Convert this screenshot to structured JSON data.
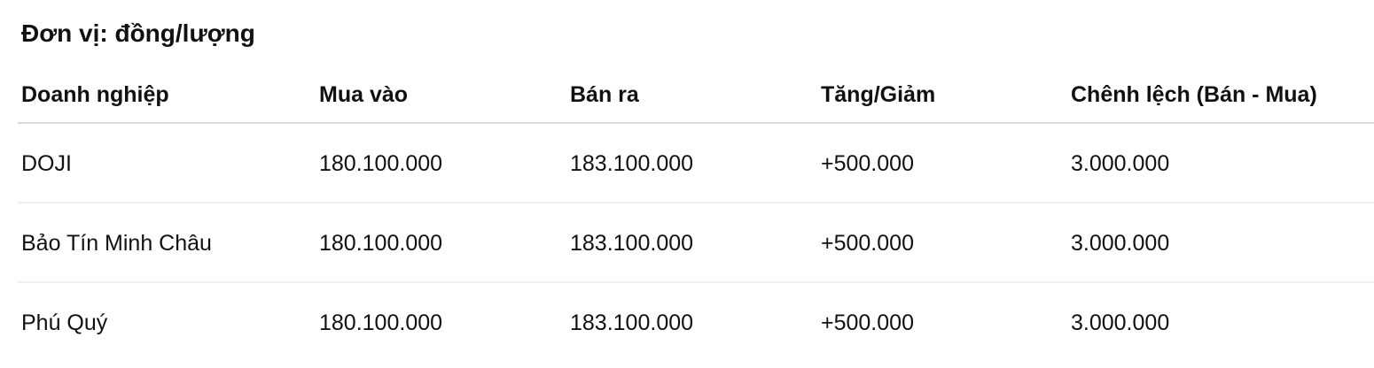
{
  "unit_label": "Đơn vị: đồng/lượng",
  "table": {
    "headers": [
      "Doanh nghiệp",
      "Mua vào",
      "Bán ra",
      "Tăng/Giảm",
      "Chênh lệch (Bán - Mua)"
    ],
    "rows": [
      [
        "DOJI",
        "180.100.000",
        "183.100.000",
        "+500.000",
        "3.000.000"
      ],
      [
        "Bảo Tín Minh Châu",
        "180.100.000",
        "183.100.000",
        "+500.000",
        "3.000.000"
      ],
      [
        "Phú Quý",
        "180.100.000",
        "183.100.000",
        "+500.000",
        "3.000.000"
      ]
    ]
  }
}
